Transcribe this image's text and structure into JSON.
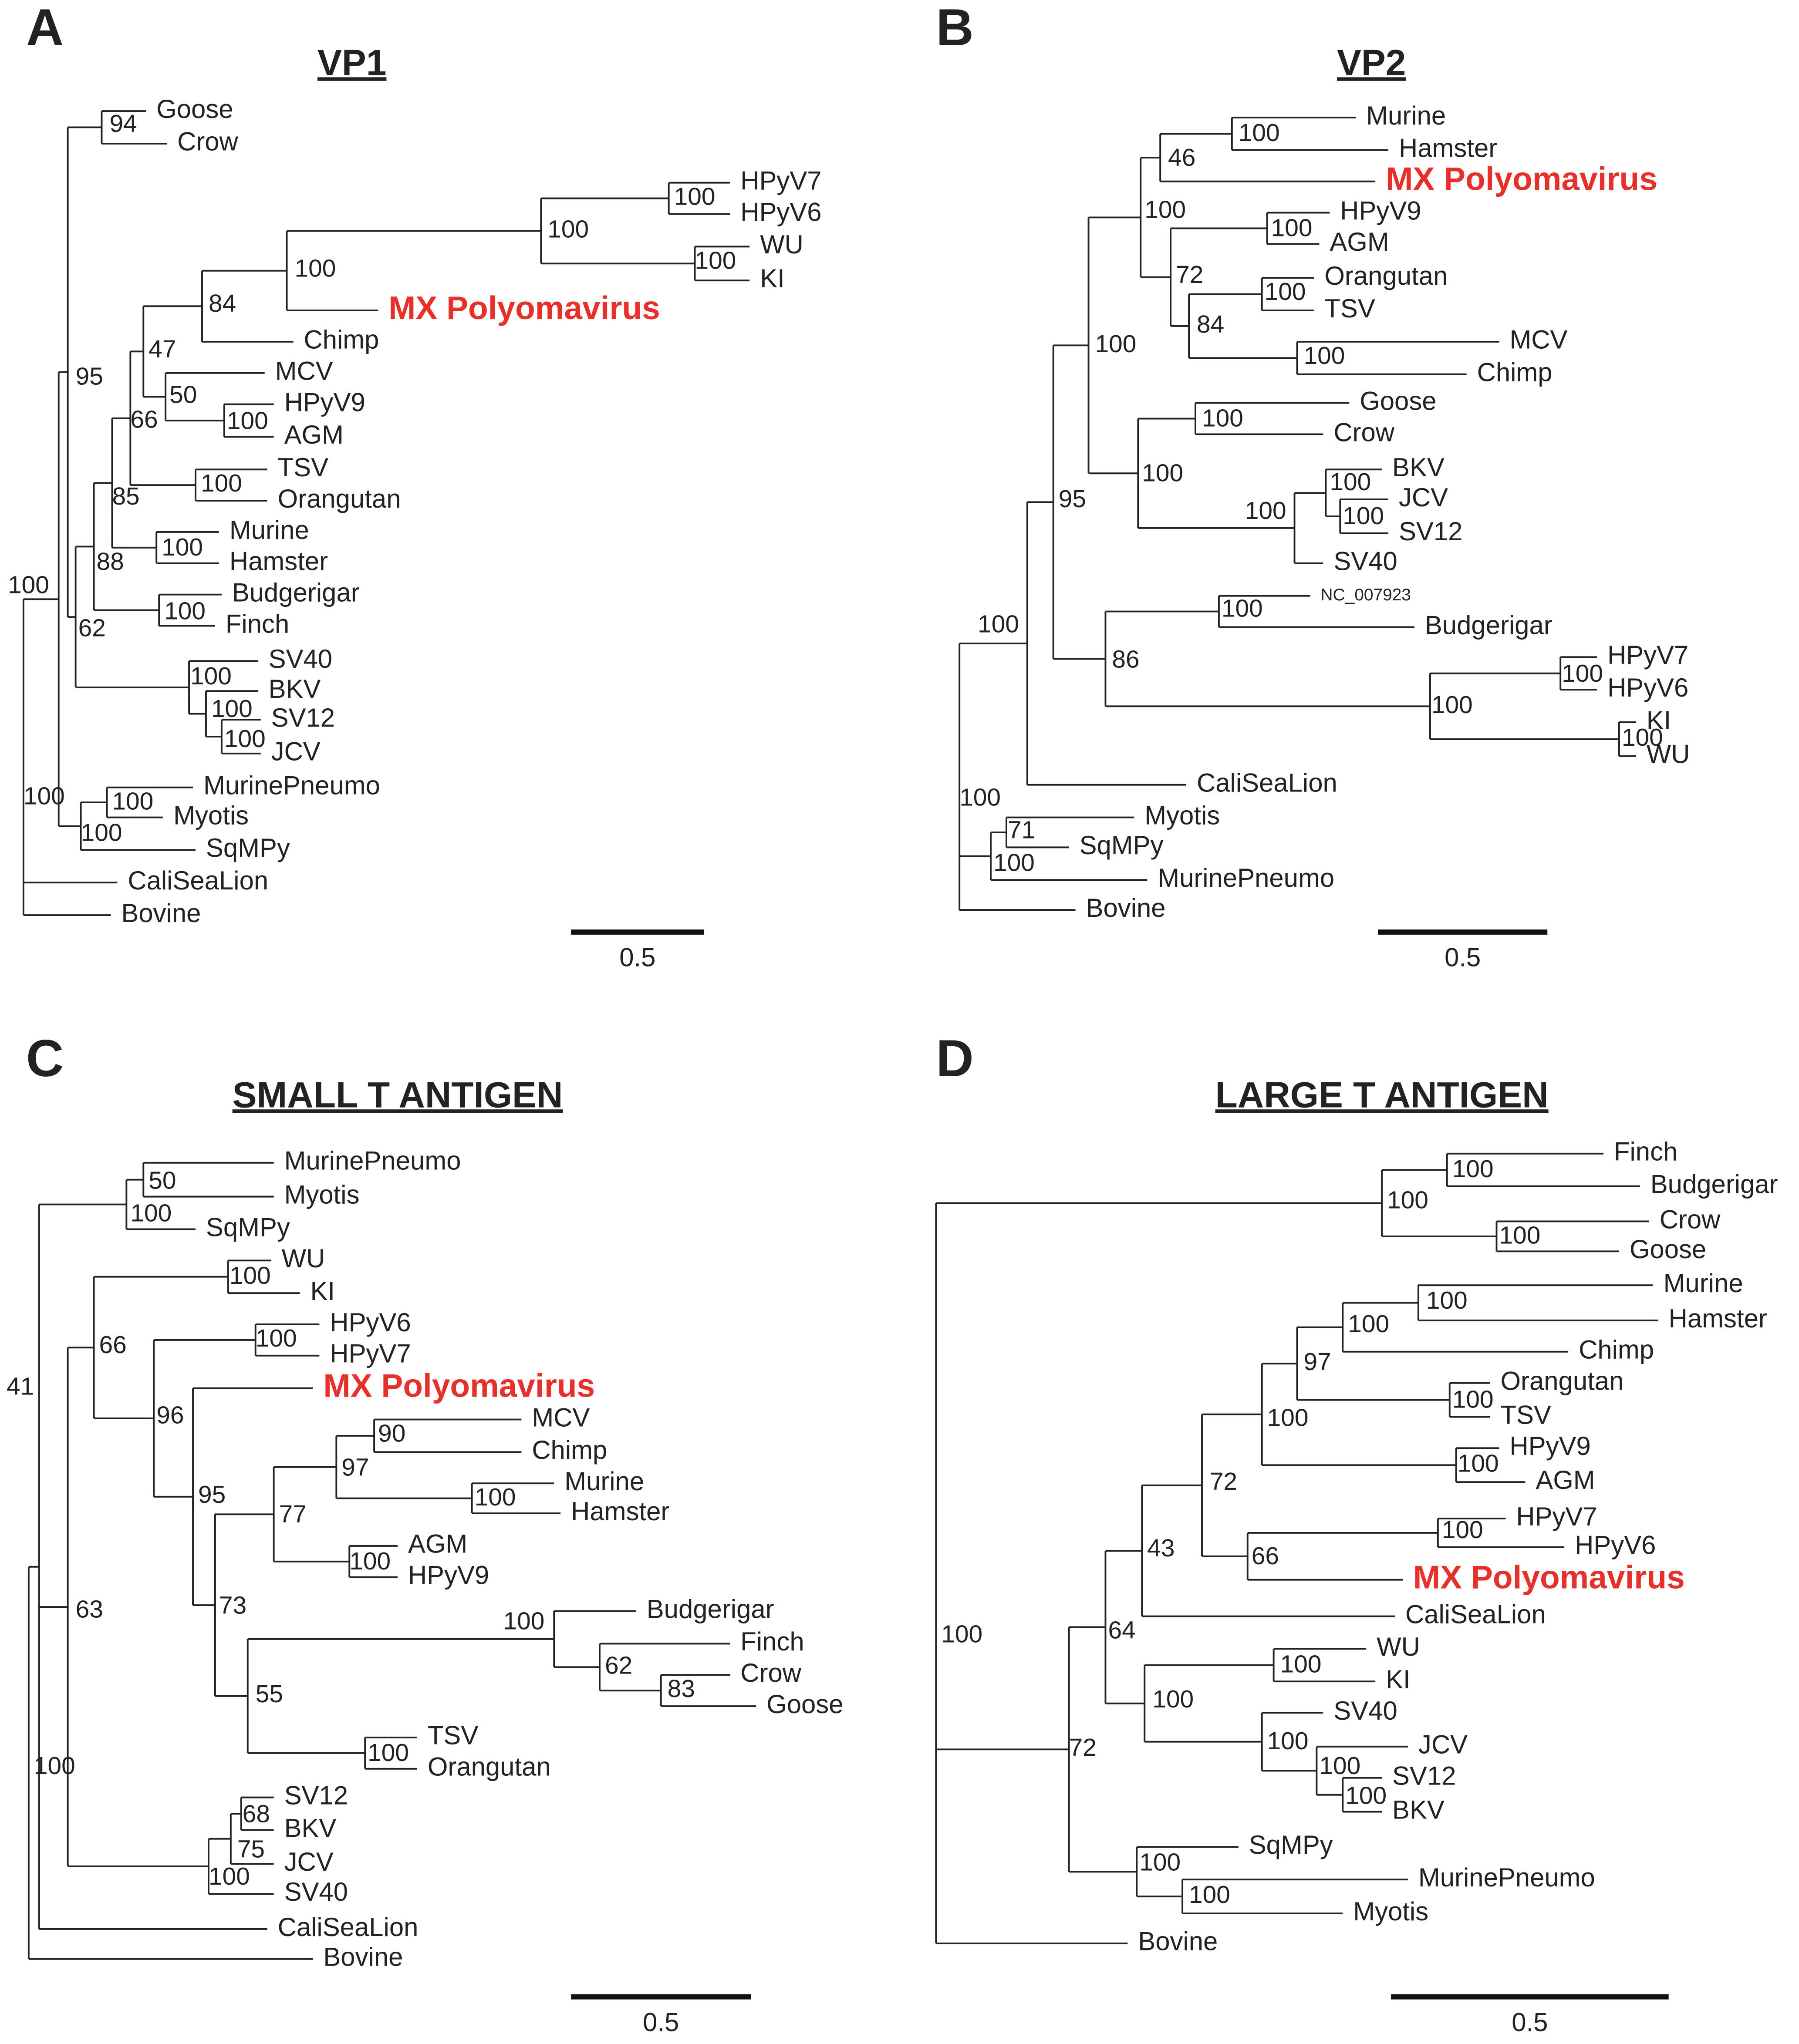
{
  "panels": [
    {
      "letter": "A",
      "title": "VP1",
      "leaves": [
        {
          "label": "Goose"
        },
        {
          "label": "Crow"
        },
        {
          "label": "HPyV7"
        },
        {
          "label": "HPyV6"
        },
        {
          "label": "WU"
        },
        {
          "label": "KI"
        },
        {
          "label": "MX Polyomavirus",
          "color": "#e8302b"
        },
        {
          "label": "Chimp"
        },
        {
          "label": "MCV"
        },
        {
          "label": "HPyV9"
        },
        {
          "label": "AGM"
        },
        {
          "label": "TSV"
        },
        {
          "label": "Orangutan"
        },
        {
          "label": "Murine"
        },
        {
          "label": "Hamster"
        },
        {
          "label": "Budgerigar"
        },
        {
          "label": "Finch"
        },
        {
          "label": "SV40"
        },
        {
          "label": "BKV"
        },
        {
          "label": "SV12"
        },
        {
          "label": "JCV"
        },
        {
          "label": "MurinePneumo"
        },
        {
          "label": "Myotis"
        },
        {
          "label": "SqMPy"
        },
        {
          "label": "CaliSeaLion"
        },
        {
          "label": "Bovine"
        }
      ],
      "supports": [
        100,
        100,
        95,
        94,
        62,
        88,
        85,
        66,
        47,
        84,
        100,
        100,
        100,
        100,
        50,
        100,
        100,
        100,
        100,
        100,
        100,
        100,
        100,
        100
      ],
      "scale_bar": 0.5
    },
    {
      "letter": "B",
      "title": "VP2",
      "leaves": [
        {
          "label": "Murine"
        },
        {
          "label": "Hamster"
        },
        {
          "label": "MX Polyomavirus",
          "color": "#e8302b"
        },
        {
          "label": "HPyV9"
        },
        {
          "label": "AGM"
        },
        {
          "label": "Orangutan"
        },
        {
          "label": "TSV"
        },
        {
          "label": "MCV"
        },
        {
          "label": "Chimp"
        },
        {
          "label": "Goose"
        },
        {
          "label": "Crow"
        },
        {
          "label": "BKV"
        },
        {
          "label": "JCV"
        },
        {
          "label": "SV12"
        },
        {
          "label": "SV40"
        },
        {
          "label": "NC_007923"
        },
        {
          "label": "Budgerigar"
        },
        {
          "label": "HPyV7"
        },
        {
          "label": "HPyV6"
        },
        {
          "label": "KI"
        },
        {
          "label": "WU"
        },
        {
          "label": "CaliSeaLion"
        },
        {
          "label": "Myotis"
        },
        {
          "label": "SqMPy"
        },
        {
          "label": "MurinePneumo"
        },
        {
          "label": "Bovine"
        }
      ],
      "supports": [
        100,
        100,
        95,
        100,
        100,
        46,
        100,
        72,
        100,
        84,
        100,
        100,
        100,
        100,
        100,
        100,
        100,
        86,
        100,
        100,
        100,
        100,
        100,
        71
      ],
      "scale_bar": 0.5
    },
    {
      "letter": "C",
      "title": "SMALL T ANTIGEN",
      "leaves": [
        {
          "label": "MurinePneumo"
        },
        {
          "label": "Myotis"
        },
        {
          "label": "SqMPy"
        },
        {
          "label": "WU"
        },
        {
          "label": "KI"
        },
        {
          "label": "HPyV6"
        },
        {
          "label": "HPyV7"
        },
        {
          "label": "MX Polyomavirus",
          "color": "#e8302b"
        },
        {
          "label": "MCV"
        },
        {
          "label": "Chimp"
        },
        {
          "label": "Murine"
        },
        {
          "label": "Hamster"
        },
        {
          "label": "AGM"
        },
        {
          "label": "HPyV9"
        },
        {
          "label": "Budgerigar"
        },
        {
          "label": "Finch"
        },
        {
          "label": "Crow"
        },
        {
          "label": "Goose"
        },
        {
          "label": "TSV"
        },
        {
          "label": "Orangutan"
        },
        {
          "label": "SV12"
        },
        {
          "label": "BKV"
        },
        {
          "label": "JCV"
        },
        {
          "label": "SV40"
        },
        {
          "label": "CaliSeaLion"
        },
        {
          "label": "Bovine"
        }
      ],
      "supports": [
        100,
        41,
        100,
        50,
        63,
        66,
        100,
        96,
        100,
        95,
        73,
        77,
        97,
        90,
        100,
        100,
        55,
        100,
        62,
        83,
        100,
        100,
        75,
        68
      ],
      "scale_bar": 0.5
    },
    {
      "letter": "D",
      "title": "LARGE T ANTIGEN",
      "leaves": [
        {
          "label": "Finch"
        },
        {
          "label": "Budgerigar"
        },
        {
          "label": "Crow"
        },
        {
          "label": "Goose"
        },
        {
          "label": "Murine"
        },
        {
          "label": "Hamster"
        },
        {
          "label": "Chimp"
        },
        {
          "label": "Orangutan"
        },
        {
          "label": "TSV"
        },
        {
          "label": "HPyV9"
        },
        {
          "label": "AGM"
        },
        {
          "label": "HPyV7"
        },
        {
          "label": "HPyV6"
        },
        {
          "label": "MX Polyomavirus",
          "color": "#e8302b"
        },
        {
          "label": "CaliSeaLion"
        },
        {
          "label": "WU"
        },
        {
          "label": "KI"
        },
        {
          "label": "SV40"
        },
        {
          "label": "JCV"
        },
        {
          "label": "SV12"
        },
        {
          "label": "BKV"
        },
        {
          "label": "SqMPy"
        },
        {
          "label": "MurinePneumo"
        },
        {
          "label": "Myotis"
        },
        {
          "label": "Bovine"
        }
      ],
      "supports": [
        100,
        100,
        100,
        100,
        72,
        64,
        43,
        72,
        100,
        97,
        100,
        100,
        100,
        100,
        66,
        100,
        100,
        100,
        100,
        100,
        100,
        100,
        100
      ],
      "scale_bar": 0.5
    }
  ]
}
